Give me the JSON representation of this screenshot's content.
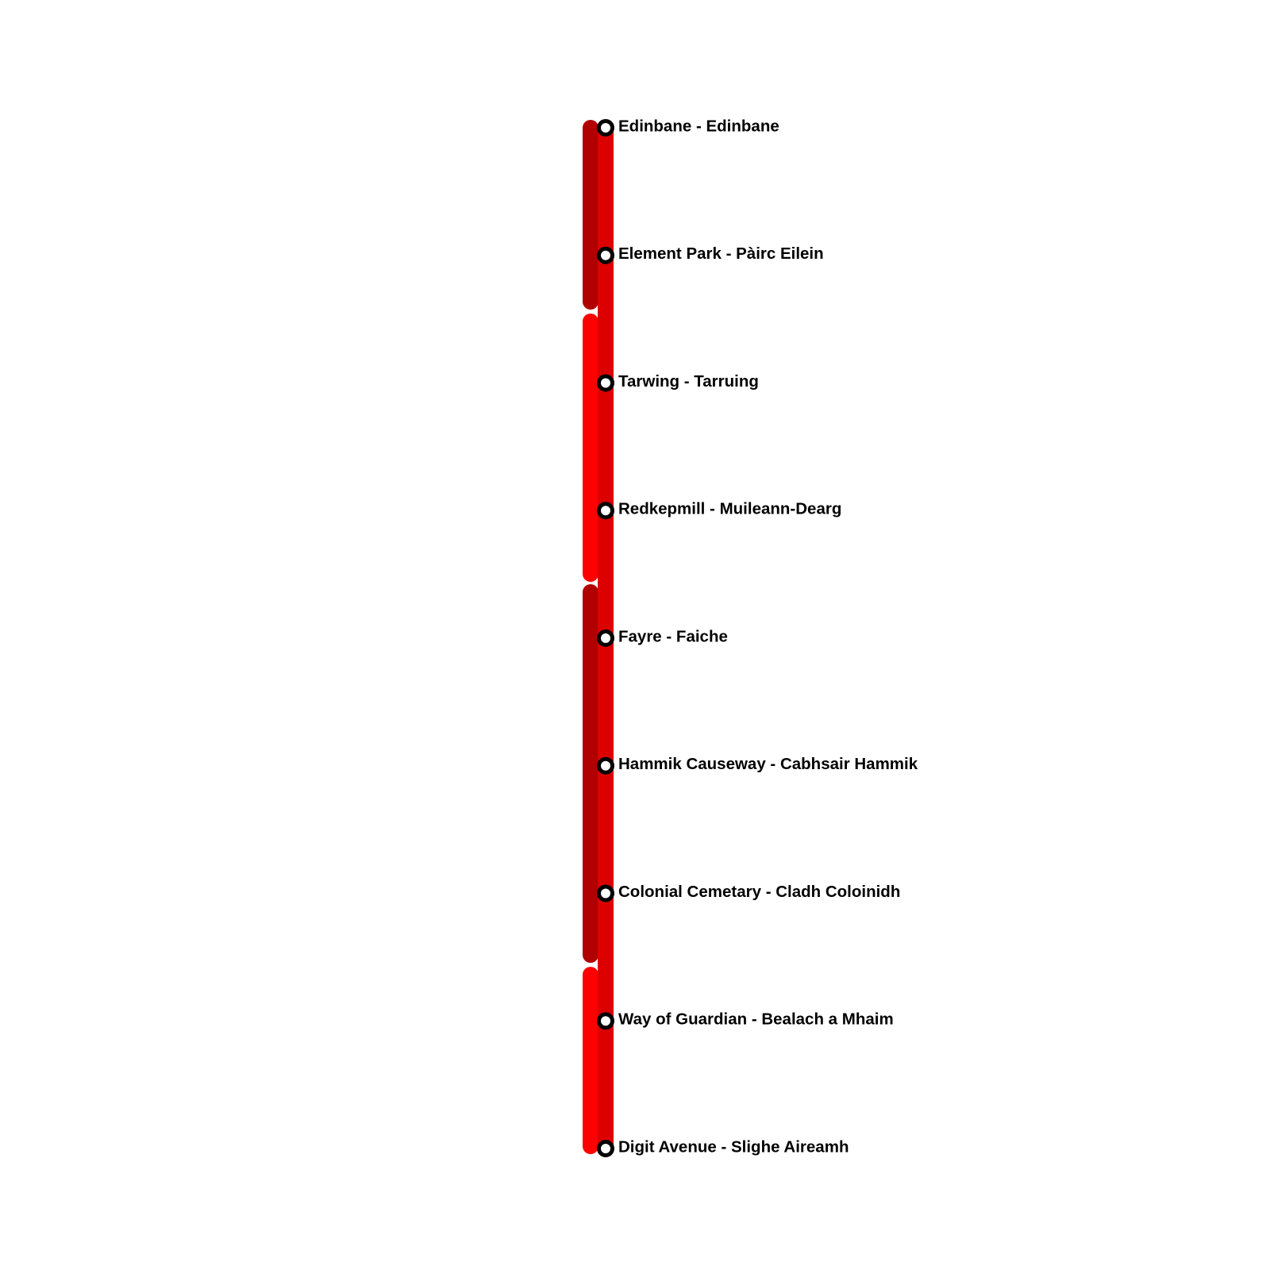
{
  "stations": [
    "Edinbane - Edinbane",
    "Element Park - Pàirc Eilein",
    "Tarwing - Tarruing",
    "Redkepmill - Muileann-Dearg",
    "Fayre - Faiche",
    "Hammik Causeway - Cabhsair Hammik",
    "Colonial Cemetary - Cladh Coloinidh",
    "Way of Guardian - Bealach a Mhaim",
    "Digit Avenue - Slighe Aireamh"
  ]
}
